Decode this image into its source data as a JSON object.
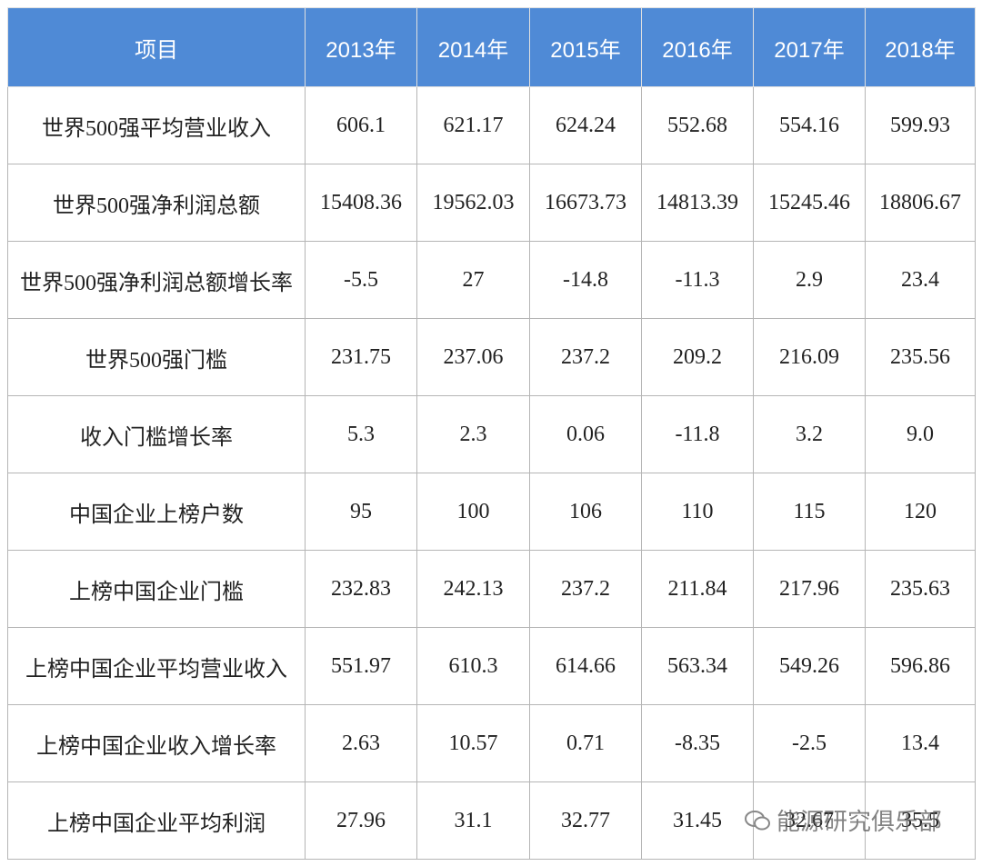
{
  "table": {
    "header": [
      "项目",
      "2013年",
      "2014年",
      "2015年",
      "2016年",
      "2017年",
      "2018年"
    ],
    "rows": [
      [
        "世界500强平均营业收入",
        "606.1",
        "621.17",
        "624.24",
        "552.68",
        "554.16",
        "599.93"
      ],
      [
        "世界500强净利润总额",
        "15408.36",
        "19562.03",
        "16673.73",
        "14813.39",
        "15245.46",
        "18806.67"
      ],
      [
        "世界500强净利润总额增长率",
        "-5.5",
        "27",
        "-14.8",
        "-11.3",
        "2.9",
        "23.4"
      ],
      [
        "世界500强门槛",
        "231.75",
        "237.06",
        "237.2",
        "209.2",
        "216.09",
        "235.56"
      ],
      [
        "收入门槛增长率",
        "5.3",
        "2.3",
        "0.06",
        "-11.8",
        "3.2",
        "9.0"
      ],
      [
        "中国企业上榜户数",
        "95",
        "100",
        "106",
        "110",
        "115",
        "120"
      ],
      [
        "上榜中国企业门槛",
        "232.83",
        "242.13",
        "237.2",
        "211.84",
        "217.96",
        "235.63"
      ],
      [
        "上榜中国企业平均营业收入",
        "551.97",
        "610.3",
        "614.66",
        "563.34",
        "549.26",
        "596.86"
      ],
      [
        "上榜中国企业收入增长率",
        "2.63",
        "10.57",
        "0.71",
        "-8.35",
        "-2.5",
        "13.4"
      ],
      [
        "上榜中国企业平均利润",
        "27.96",
        "31.1",
        "32.77",
        "31.45",
        "32.67",
        "35.5"
      ]
    ]
  },
  "watermark": "能源研究俱乐部"
}
